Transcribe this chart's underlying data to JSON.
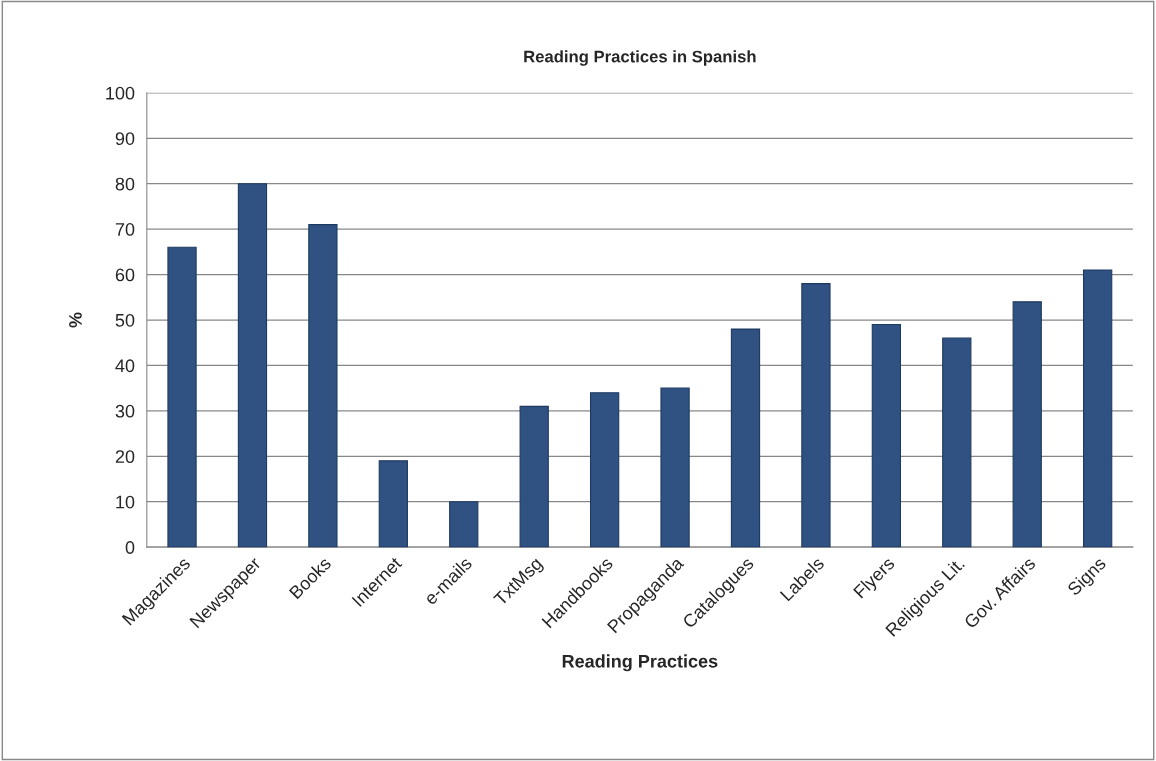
{
  "chart_data": {
    "type": "bar",
    "title": "Reading Practices in Spanish",
    "xlabel": "Reading Practices",
    "ylabel": "%",
    "categories": [
      "Magazines",
      "Newspaper",
      "Books",
      "Internet",
      "e-mails",
      "TxtMsg",
      "Handbooks",
      "Propaganda",
      "Catalogues",
      "Labels",
      "Flyers",
      "Religious Lit.",
      "Gov. Affairs",
      "Signs"
    ],
    "values": [
      66,
      80,
      71,
      19,
      10,
      31,
      34,
      35,
      48,
      58,
      49,
      46,
      54,
      61
    ],
    "color": "#2f5283",
    "ylim": [
      0,
      100
    ],
    "yticks": [
      0,
      10,
      20,
      30,
      40,
      50,
      60,
      70,
      80,
      90,
      100
    ],
    "grid": "y",
    "legend": false
  }
}
